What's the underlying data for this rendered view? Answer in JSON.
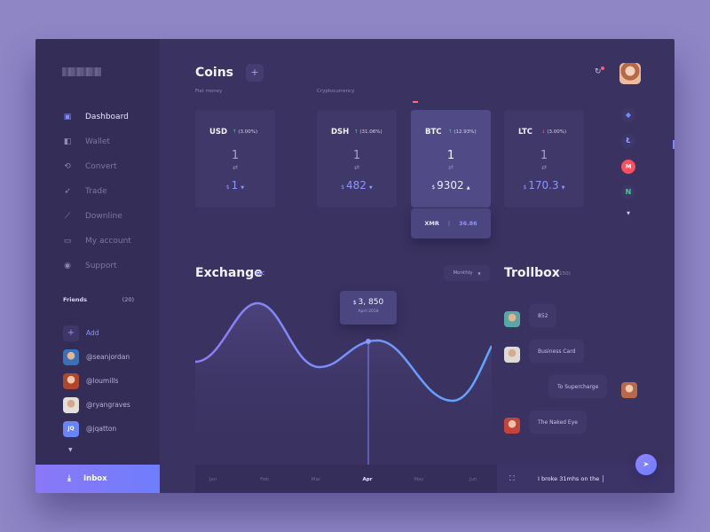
{
  "sidebar": {
    "nav": [
      {
        "label": "Dashboard",
        "icon": "dashboard-icon",
        "active": true
      },
      {
        "label": "Wallet",
        "icon": "wallet-icon"
      },
      {
        "label": "Convert",
        "icon": "convert-icon"
      },
      {
        "label": "Trade",
        "icon": "trade-icon"
      },
      {
        "label": "Downline",
        "icon": "chart-icon"
      },
      {
        "label": "My account",
        "icon": "account-icon"
      },
      {
        "label": "Support",
        "icon": "support-icon"
      }
    ],
    "friends_label": "Friends",
    "friends_count": "(20)",
    "add_label": "Add",
    "friends": [
      {
        "handle": "@seanjordan",
        "color": "#5b8fd6"
      },
      {
        "handle": "@loumills",
        "color": "#c9745a"
      },
      {
        "handle": "@ryangraves",
        "color": "#c9b3a3"
      },
      {
        "handle": "@jqatton",
        "initials": "JQ",
        "color": "#6a84f5"
      }
    ],
    "inbox_label": "Inbox"
  },
  "coins": {
    "title": "Coins",
    "plus_label": "+",
    "fiat_label": "Fiat money",
    "crypto_label": "Cryptocurrency",
    "cards": [
      {
        "name": "USD",
        "change": "(3.00%)",
        "direction": "up",
        "qty": "1",
        "price": "1"
      },
      {
        "name": "DSH",
        "change": "(31.06%)",
        "direction": "up",
        "qty": "1",
        "price": "482"
      },
      {
        "name": "BTC",
        "change": "(12.93%)",
        "direction": "up",
        "qty": "1",
        "price": "9302",
        "active": true
      },
      {
        "name": "LTC",
        "change": "(3.00%)",
        "direction": "down",
        "qty": "1",
        "price": "170.3"
      }
    ],
    "xmr": {
      "name": "XMR",
      "value": "36.86"
    },
    "coin_icons": [
      {
        "icon": "ethereum-icon",
        "glyph": "◆",
        "color": "#6f8cff"
      },
      {
        "icon": "litecoin-icon",
        "glyph": "Ł",
        "color": "#8e9bff"
      },
      {
        "icon": "monero-icon",
        "glyph": "M",
        "color": "#ff4e5e"
      },
      {
        "icon": "neo-icon",
        "glyph": "N",
        "color": "#42d08f"
      }
    ]
  },
  "exchange": {
    "title": "Exchange",
    "tag": "LTC",
    "period": "Monthly",
    "tooltip_value": "3, 850",
    "tooltip_date": "April 2018",
    "months": [
      "Jan",
      "Feb",
      "Mar",
      "Apr",
      "May",
      "Jun"
    ],
    "active_month": "Apr"
  },
  "trollbox": {
    "title": "Trollbox",
    "count": "(150)",
    "messages": [
      {
        "text": "852",
        "side": "left"
      },
      {
        "text": "Business Card",
        "side": "left"
      },
      {
        "text": "To Supercharge",
        "side": "right"
      },
      {
        "text": "The Naked Eye",
        "side": "left"
      }
    ],
    "input_value": "I broke 31mhs on the"
  }
}
